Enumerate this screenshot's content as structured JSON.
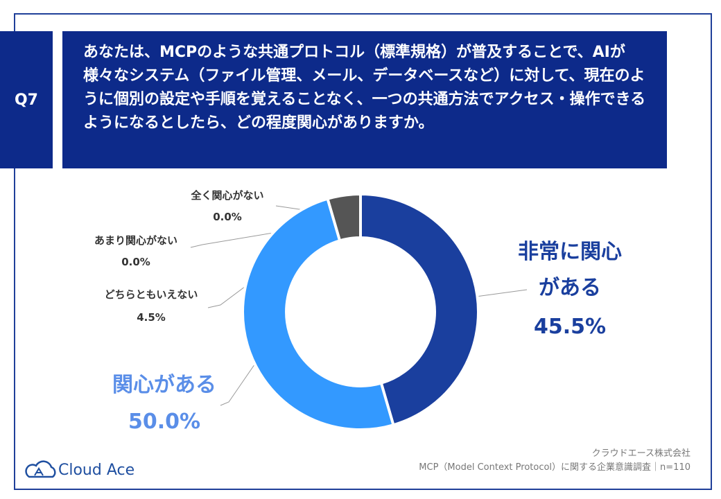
{
  "header": {
    "badge": "Q7",
    "question": "あなたは、MCPのような共通プロトコル（標準規格）が普及することで、AIが様々なシステム（ファイル管理、メール、データベースなど）に対して、現在のように個別の設定や手順を覚えることなく、一つの共通方法でアクセス・操作できるようになるとしたら、どの程度関心がありますか。"
  },
  "chart_data": {
    "type": "donut",
    "categories": [
      "非常に関心がある",
      "関心がある",
      "どちらともいえない",
      "あまり関心がない",
      "全く関心がない"
    ],
    "values": [
      45.5,
      50.0,
      4.5,
      0.0,
      0.0
    ],
    "value_labels": [
      "45.5%",
      "50.0%",
      "4.5%",
      "0.0%",
      "0.0%"
    ],
    "colors": [
      "#1a3f9e",
      "#3399ff",
      "#555555",
      "#777777",
      "#999999"
    ]
  },
  "footer": {
    "company": "クラウドエース株式会社",
    "survey": "MCP（Model Context Protocol）に関する企業意識調査｜n=110",
    "logo": "Cloud Ace"
  }
}
